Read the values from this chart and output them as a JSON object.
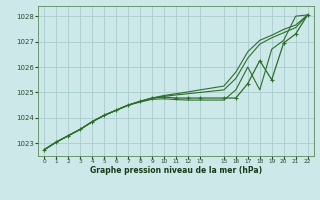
{
  "xlabel": "Graphe pression niveau de la mer (hPa)",
  "bg_color": "#cce8e8",
  "grid_color": "#aacccc",
  "line_color": "#2d6e2d",
  "xlim": [
    -0.5,
    22.5
  ],
  "ylim": [
    1022.5,
    1028.4
  ],
  "yticks": [
    1023,
    1024,
    1025,
    1026,
    1027,
    1028
  ],
  "x_ticks": [
    0,
    1,
    2,
    3,
    4,
    5,
    6,
    7,
    8,
    9,
    10,
    11,
    12,
    13,
    15,
    16,
    17,
    18,
    19,
    20,
    21,
    22
  ],
  "series_x": [
    0,
    1,
    2,
    3,
    4,
    5,
    6,
    7,
    8,
    9,
    10,
    11,
    12,
    13,
    15,
    16,
    17,
    18,
    19,
    20,
    21,
    22
  ],
  "main": [
    1022.75,
    1023.05,
    1023.3,
    1023.55,
    1023.85,
    1024.1,
    1024.3,
    1024.5,
    1024.65,
    1024.78,
    1024.82,
    1024.78,
    1024.78,
    1024.78,
    1024.78,
    1024.78,
    1025.35,
    1026.25,
    1025.5,
    1026.95,
    1027.3,
    1028.05
  ],
  "upper1": [
    1022.75,
    1023.05,
    1023.3,
    1023.55,
    1023.85,
    1024.1,
    1024.3,
    1024.5,
    1024.65,
    1024.78,
    1024.85,
    1024.9,
    1024.95,
    1025.0,
    1025.1,
    1025.55,
    1026.35,
    1026.9,
    1027.15,
    1027.35,
    1027.55,
    1028.05
  ],
  "upper2": [
    1022.75,
    1023.05,
    1023.3,
    1023.55,
    1023.85,
    1024.1,
    1024.3,
    1024.5,
    1024.65,
    1024.78,
    1024.88,
    1024.95,
    1025.02,
    1025.1,
    1025.25,
    1025.8,
    1026.6,
    1027.05,
    1027.25,
    1027.48,
    1027.65,
    1028.05
  ],
  "lower1": [
    1022.75,
    1023.05,
    1023.3,
    1023.55,
    1023.85,
    1024.1,
    1024.3,
    1024.5,
    1024.62,
    1024.73,
    1024.75,
    1024.72,
    1024.7,
    1024.7,
    1024.7,
    1025.1,
    1026.0,
    1025.1,
    1026.7,
    1027.05,
    1028.0,
    1028.05
  ]
}
